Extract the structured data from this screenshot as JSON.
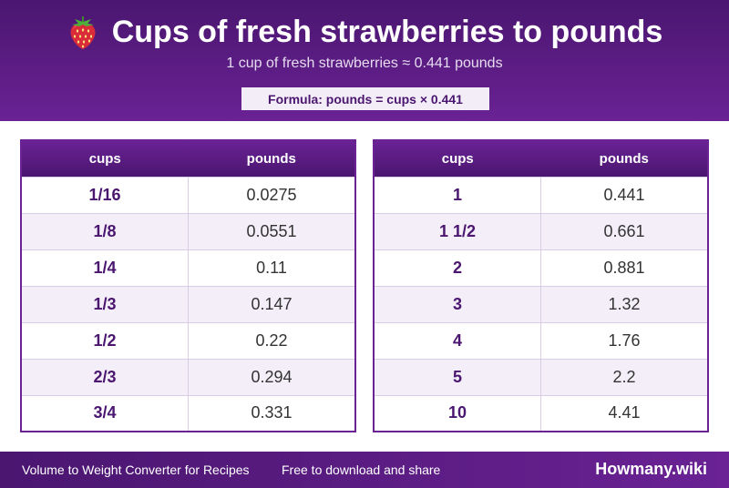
{
  "header": {
    "title": "Cups of fresh strawberries to pounds",
    "subtitle": "1 cup of fresh strawberries ≈ 0.441 pounds",
    "formula": "Formula: pounds = cups × 0.441",
    "icon": "strawberry-icon"
  },
  "tables": {
    "left": {
      "col_cups": "cups",
      "col_pounds": "pounds",
      "rows": [
        {
          "cups": "1/16",
          "pounds": "0.0275"
        },
        {
          "cups": "1/8",
          "pounds": "0.0551"
        },
        {
          "cups": "1/4",
          "pounds": "0.11"
        },
        {
          "cups": "1/3",
          "pounds": "0.147"
        },
        {
          "cups": "1/2",
          "pounds": "0.22"
        },
        {
          "cups": "2/3",
          "pounds": "0.294"
        },
        {
          "cups": "3/4",
          "pounds": "0.331"
        }
      ]
    },
    "right": {
      "col_cups": "cups",
      "col_pounds": "pounds",
      "rows": [
        {
          "cups": "1",
          "pounds": "0.441"
        },
        {
          "cups": "1 1/2",
          "pounds": "0.661"
        },
        {
          "cups": "2",
          "pounds": "0.881"
        },
        {
          "cups": "3",
          "pounds": "1.32"
        },
        {
          "cups": "4",
          "pounds": "1.76"
        },
        {
          "cups": "5",
          "pounds": "2.2"
        },
        {
          "cups": "10",
          "pounds": "4.41"
        }
      ]
    }
  },
  "footer": {
    "left_text": "Volume to Weight Converter for Recipes",
    "mid_text": "Free to download and share",
    "brand": "Howmany.wiki"
  },
  "colors": {
    "primary": "#4a1670",
    "accent": "#6a2294",
    "row_alt": "#f3eef8"
  }
}
